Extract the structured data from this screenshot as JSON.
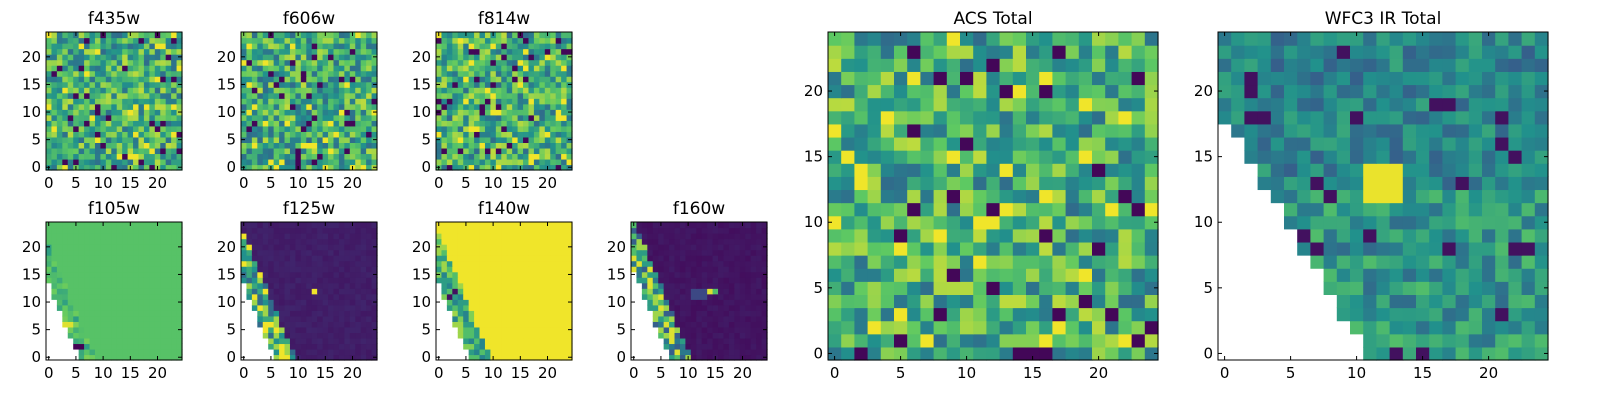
{
  "chart_data": {
    "type": "heatmap",
    "colormap": [
      "#440154",
      "#3b528b",
      "#21918c",
      "#5ec962",
      "#fde725"
    ],
    "grid_size": 25,
    "panels": [
      {
        "id": "f435w",
        "title": "f435w",
        "pattern": "noise",
        "seed": 11,
        "size": "small",
        "xticks": [
          "0",
          "5",
          "10",
          "15",
          "20"
        ],
        "yticks": [
          "0",
          "5",
          "10",
          "15",
          "20"
        ]
      },
      {
        "id": "f606w",
        "title": "f606w",
        "pattern": "noise",
        "seed": 23,
        "size": "small",
        "xticks": [
          "0",
          "5",
          "10",
          "15",
          "20"
        ],
        "yticks": [
          "0",
          "5",
          "10",
          "15",
          "20"
        ]
      },
      {
        "id": "f814w",
        "title": "f814w",
        "pattern": "noise",
        "seed": 37,
        "size": "small",
        "xticks": [
          "0",
          "5",
          "10",
          "15",
          "20"
        ],
        "yticks": [
          "0",
          "5",
          "10",
          "15",
          "20"
        ]
      },
      {
        "id": "f105w",
        "title": "f105w",
        "pattern": "f105w",
        "seed": 41,
        "size": "small",
        "xticks": [
          "0",
          "5",
          "10",
          "15",
          "20"
        ],
        "yticks": [
          "0",
          "5",
          "10",
          "15",
          "20"
        ]
      },
      {
        "id": "f125w",
        "title": "f125w",
        "pattern": "f125w",
        "seed": 53,
        "size": "small",
        "xticks": [
          "0",
          "5",
          "10",
          "15",
          "20"
        ],
        "yticks": [
          "0",
          "5",
          "10",
          "15",
          "20"
        ]
      },
      {
        "id": "f140w",
        "title": "f140w",
        "pattern": "f140w",
        "seed": 67,
        "size": "small",
        "xticks": [
          "0",
          "5",
          "10",
          "15",
          "20"
        ],
        "yticks": [
          "0",
          "5",
          "10",
          "15",
          "20"
        ]
      },
      {
        "id": "f160w",
        "title": "f160w",
        "pattern": "f160w",
        "seed": 79,
        "size": "small",
        "xticks": [
          "0",
          "5",
          "10",
          "15",
          "20"
        ],
        "yticks": [
          "0",
          "5",
          "10",
          "15",
          "20"
        ]
      },
      {
        "id": "acs-total",
        "title": "ACS Total",
        "pattern": "noise",
        "seed": 97,
        "size": "large",
        "xticks": [
          "0",
          "5",
          "10",
          "15",
          "20"
        ],
        "yticks": [
          "0",
          "5",
          "10",
          "15",
          "20"
        ]
      },
      {
        "id": "wfc3-ir-total",
        "title": "WFC3 IR Total",
        "pattern": "wfc3",
        "seed": 103,
        "size": "large",
        "xticks": [
          "0",
          "5",
          "10",
          "15",
          "20"
        ],
        "yticks": [
          "0",
          "5",
          "10",
          "15",
          "20"
        ]
      }
    ]
  }
}
